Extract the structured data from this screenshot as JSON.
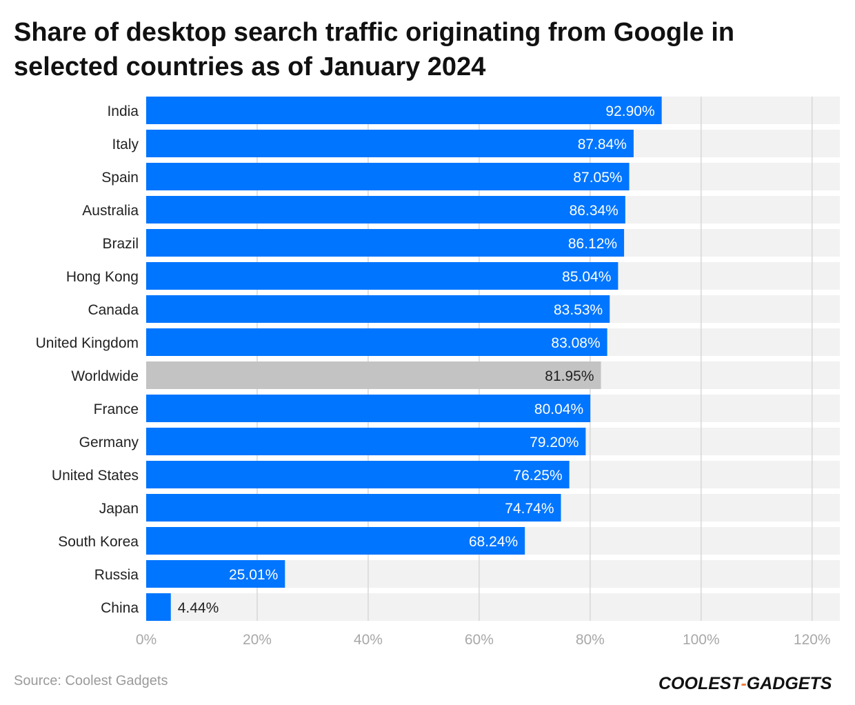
{
  "header": {
    "title": "Share of desktop search traffic originating from Google in selected countries as of January 2024"
  },
  "footer": {
    "source": "Source: Coolest Gadgets",
    "brand_part1": "COOLEST",
    "brand_dash": "-",
    "brand_part2": "GADGETS"
  },
  "colors": {
    "bar": "#0075ff",
    "highlight_bar": "#c3c3c3",
    "track": "#f2f2f2",
    "grid": "#d7d7d7",
    "tick_label": "#a8a8a8",
    "category_label": "#222222",
    "brand_accent": "#f07d3c"
  },
  "chart_data": {
    "type": "bar",
    "orientation": "horizontal",
    "title": "Share of desktop search traffic originating from Google in selected countries as of January 2024",
    "categories": [
      "India",
      "Italy",
      "Spain",
      "Australia",
      "Brazil",
      "Hong Kong",
      "Canada",
      "United Kingdom",
      "Worldwide",
      "France",
      "Germany",
      "United States",
      "Japan",
      "South Korea",
      "Russia",
      "China"
    ],
    "values": [
      92.9,
      87.84,
      87.05,
      86.34,
      86.12,
      85.04,
      83.53,
      83.08,
      81.95,
      80.04,
      79.2,
      76.25,
      74.74,
      68.24,
      25.01,
      4.44
    ],
    "value_labels": [
      "92.90%",
      "87.84%",
      "87.05%",
      "86.34%",
      "86.12%",
      "85.04%",
      "83.53%",
      "83.08%",
      "81.95%",
      "80.04%",
      "79.20%",
      "76.25%",
      "74.74%",
      "68.24%",
      "25.01%",
      "4.44%"
    ],
    "highlight": "Worldwide",
    "xlim": [
      0,
      125
    ],
    "xticks": [
      0,
      20,
      40,
      60,
      80,
      100,
      120
    ],
    "xtick_labels": [
      "0%",
      "20%",
      "40%",
      "60%",
      "80%",
      "100%",
      "120%"
    ],
    "xlabel": "",
    "ylabel": "",
    "grid": true,
    "legend": "none"
  }
}
